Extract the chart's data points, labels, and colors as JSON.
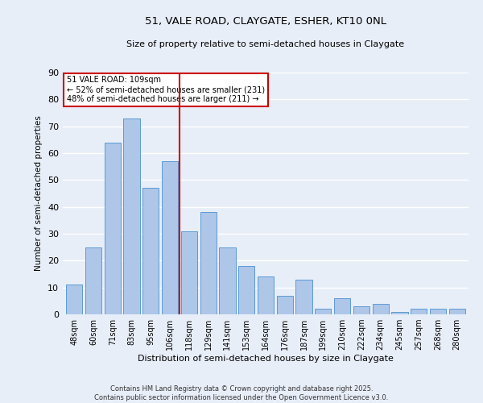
{
  "title_line1": "51, VALE ROAD, CLAYGATE, ESHER, KT10 0NL",
  "title_line2": "Size of property relative to semi-detached houses in Claygate",
  "xlabel": "Distribution of semi-detached houses by size in Claygate",
  "ylabel": "Number of semi-detached properties",
  "categories": [
    "48sqm",
    "60sqm",
    "71sqm",
    "83sqm",
    "95sqm",
    "106sqm",
    "118sqm",
    "129sqm",
    "141sqm",
    "153sqm",
    "164sqm",
    "176sqm",
    "187sqm",
    "199sqm",
    "210sqm",
    "222sqm",
    "234sqm",
    "245sqm",
    "257sqm",
    "268sqm",
    "280sqm"
  ],
  "values": [
    11,
    25,
    64,
    73,
    47,
    57,
    31,
    38,
    25,
    18,
    14,
    7,
    13,
    2,
    6,
    3,
    4,
    1,
    2,
    2,
    2
  ],
  "bar_color": "#aec6e8",
  "bar_edge_color": "#5b9bd5",
  "vline_x": 5.5,
  "vline_color": "#cc0000",
  "annotation_text": "51 VALE ROAD: 109sqm\n← 52% of semi-detached houses are smaller (231)\n48% of semi-detached houses are larger (211) →",
  "annotation_box_color": "#ffffff",
  "annotation_box_edge_color": "#cc0000",
  "ylim": [
    0,
    90
  ],
  "yticks": [
    0,
    10,
    20,
    30,
    40,
    50,
    60,
    70,
    80,
    90
  ],
  "background_color": "#e8eef8",
  "grid_color": "#ffffff",
  "footer_line1": "Contains HM Land Registry data © Crown copyright and database right 2025.",
  "footer_line2": "Contains public sector information licensed under the Open Government Licence v3.0."
}
